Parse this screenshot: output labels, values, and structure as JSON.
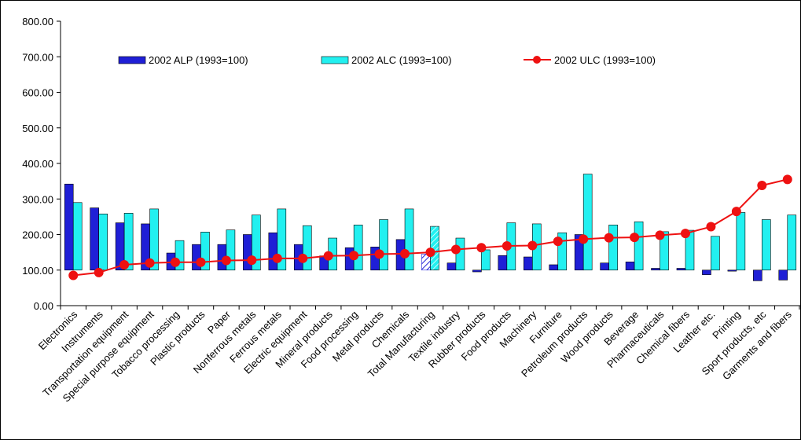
{
  "chart_data": {
    "type": "bar",
    "categories": [
      "Electronics",
      "Instruments",
      "Transportation equipment",
      "Special purpose equipment",
      "Tobacco processing",
      "Plastic products",
      "Paper",
      "Nonferrous metals",
      "Ferrous metals",
      "Electric equipment",
      "Mineral products",
      "Food processing",
      "Metal products",
      "Chemicals",
      "Total Manufacturing",
      "Textile industry",
      "Rubber products",
      "Food products",
      "Machinery",
      "Furniture",
      "Petroleum products",
      "Wood products",
      "Beverage",
      "Pharmaceuticals",
      "Chemical fibers",
      "Leather etc.",
      "Printing",
      "Sport products, etc",
      "Garments and fibers"
    ],
    "series": [
      {
        "name": "2002 ALP (1993=100)",
        "kind": "bar",
        "color": "#1f1fd6",
        "values": [
          342,
          275,
          233,
          230,
          148,
          172,
          172,
          200,
          205,
          172,
          140,
          163,
          165,
          186,
          145,
          120,
          95,
          141,
          137,
          115,
          200,
          120,
          123,
          105,
          105,
          87,
          97,
          70,
          72
        ]
      },
      {
        "name": "2002 ALC (1993=100)",
        "kind": "bar",
        "color": "#22f0f0",
        "values": [
          290,
          258,
          260,
          272,
          183,
          207,
          213,
          255,
          272,
          225,
          190,
          227,
          242,
          272,
          223,
          190,
          157,
          233,
          230,
          205,
          370,
          227,
          236,
          208,
          212,
          195,
          262,
          242,
          255
        ]
      },
      {
        "name": "2002 ULC (1993=100)",
        "kind": "line",
        "color": "#ee1111",
        "values": [
          85,
          93,
          115,
          120,
          122,
          122,
          127,
          128,
          133,
          133,
          140,
          141,
          145,
          146,
          150,
          158,
          163,
          168,
          169,
          181,
          187,
          191,
          192,
          198,
          203,
          222,
          265,
          338,
          355
        ]
      }
    ],
    "ylim": [
      0,
      800
    ],
    "yticks": [
      "0.00",
      "100.00",
      "200.00",
      "300.00",
      "400.00",
      "500.00",
      "600.00",
      "700.00",
      "800.00"
    ],
    "grid": false,
    "legend_position": "top"
  }
}
